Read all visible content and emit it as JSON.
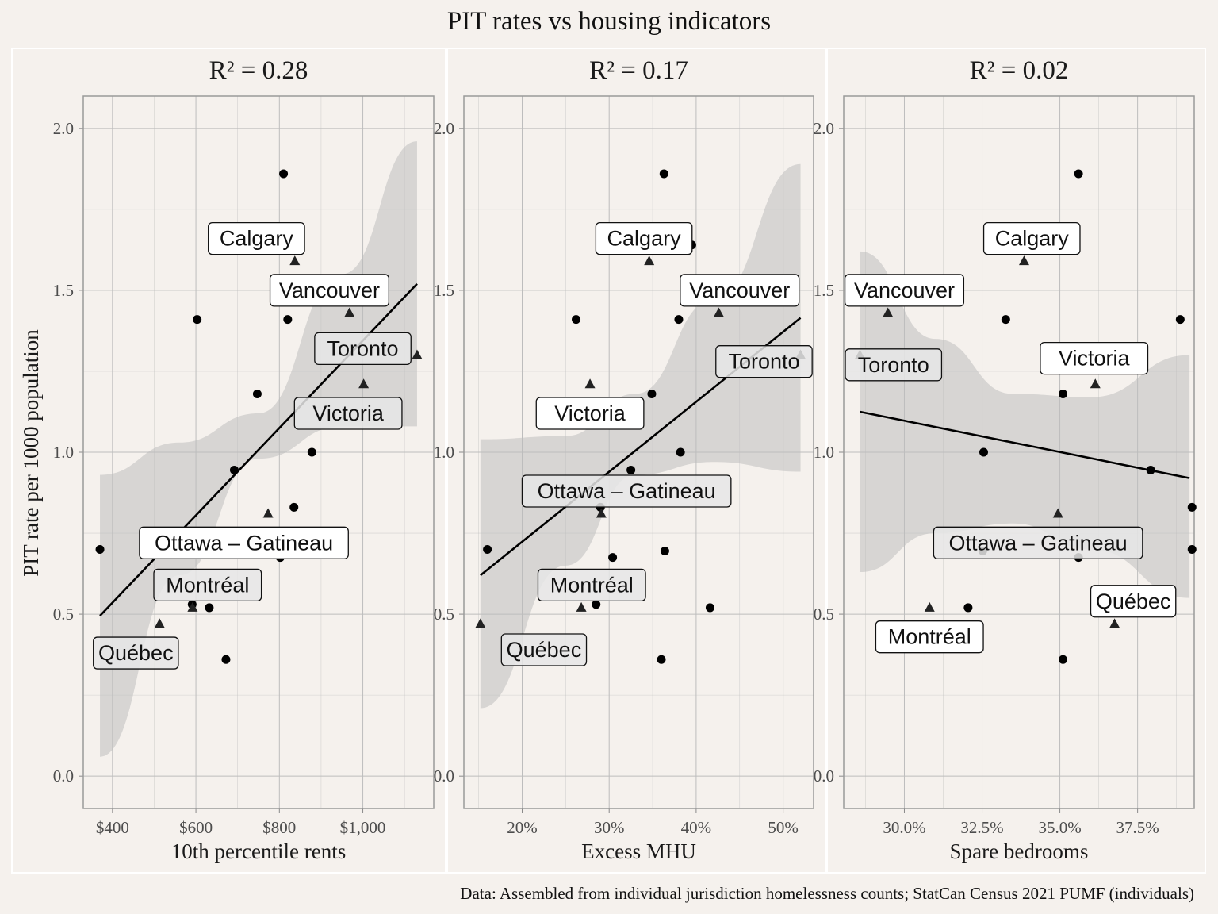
{
  "title": "PIT rates vs housing indicators",
  "caption": "Data: Assembled from individual jurisdiction homelessness counts; StatCan Census 2021 PUMF (individuals)",
  "y_axis_label": "PIT rate per 1000 population",
  "colors": {
    "background": "#F5F1ED",
    "panel_border": "#9a9a9a",
    "gridline": "#bdbdbd",
    "ribbon": "#bdbdbd",
    "points": "#000000",
    "label_fill": "#ffffff",
    "label_fill_shaded": "#e6e6e6"
  },
  "chart_data": [
    {
      "type": "scatter",
      "strip": "R² = 0.28",
      "xlabel": "10th percentile rents",
      "ylabel": "PIT rate per 1000 population",
      "xlim": [
        330,
        1170
      ],
      "ylim": [
        -0.1,
        2.1
      ],
      "x_ticks": [
        400,
        600,
        800,
        1000
      ],
      "x_tick_labels": [
        "$400",
        "$600",
        "$800",
        "$1,000"
      ],
      "y_ticks": [
        0,
        0.5,
        1.0,
        1.5,
        2.0
      ],
      "y_tick_labels": [
        "0.0",
        "0.5",
        "1.0",
        "1.5",
        "2.0"
      ],
      "fit_line": [
        [
          370,
          0.495
        ],
        [
          1130,
          1.52
        ]
      ],
      "band_lower": [
        [
          370,
          0.06
        ],
        [
          560,
          0.62
        ],
        [
          750,
          0.98
        ],
        [
          950,
          1.08
        ],
        [
          1130,
          1.08
        ]
      ],
      "band_upper": [
        [
          370,
          0.93
        ],
        [
          560,
          1.03
        ],
        [
          750,
          1.12
        ],
        [
          950,
          1.55
        ],
        [
          1130,
          1.96
        ]
      ],
      "circles": [
        [
          810,
          1.86
        ],
        [
          745,
          1.64
        ],
        [
          603,
          1.41
        ],
        [
          820,
          1.41
        ],
        [
          747,
          1.18
        ],
        [
          878,
          1.0
        ],
        [
          692,
          0.945
        ],
        [
          835,
          0.83
        ],
        [
          370,
          0.7
        ],
        [
          704,
          0.695
        ],
        [
          802,
          0.675
        ],
        [
          591,
          0.53
        ],
        [
          632,
          0.52
        ],
        [
          672,
          0.36
        ]
      ],
      "triangles": [
        [
          837,
          1.59
        ],
        [
          968,
          1.43
        ],
        [
          1130,
          1.3
        ],
        [
          1002,
          1.21
        ],
        [
          773,
          0.81
        ],
        [
          513,
          0.47
        ],
        [
          592,
          0.52
        ]
      ],
      "labels": [
        {
          "text": "Calgary",
          "x": 745,
          "y": 1.66,
          "shaded": false
        },
        {
          "text": "Vancouver",
          "x": 920,
          "y": 1.5,
          "shaded": false
        },
        {
          "text": "Toronto",
          "x": 1000,
          "y": 1.32,
          "shaded": true
        },
        {
          "text": "Victoria",
          "x": 965,
          "y": 1.12,
          "shaded": true
        },
        {
          "text": "Ottawa – Gatineau",
          "x": 715,
          "y": 0.72,
          "shaded": false
        },
        {
          "text": "Montréal",
          "x": 628,
          "y": 0.59,
          "shaded": true
        },
        {
          "text": "Québec",
          "x": 456,
          "y": 0.38,
          "shaded": true
        }
      ]
    },
    {
      "type": "scatter",
      "strip": "R² = 0.17",
      "xlabel": "Excess MHU",
      "ylabel": "PIT rate per 1000 population",
      "xlim": [
        0.133,
        0.535
      ],
      "ylim": [
        -0.1,
        2.1
      ],
      "x_ticks": [
        0.2,
        0.3,
        0.4,
        0.5
      ],
      "x_tick_labels": [
        "20%",
        "30%",
        "40%",
        "50%"
      ],
      "y_ticks": [
        0,
        0.5,
        1.0,
        1.5,
        2.0
      ],
      "y_tick_labels": [
        "0.0",
        "0.5",
        "1.0",
        "1.5",
        "2.0"
      ],
      "fit_line": [
        [
          0.152,
          0.62
        ],
        [
          0.52,
          1.415
        ]
      ],
      "band_lower": [
        [
          0.152,
          0.21
        ],
        [
          0.25,
          0.65
        ],
        [
          0.33,
          0.93
        ],
        [
          0.42,
          0.97
        ],
        [
          0.52,
          0.94
        ]
      ],
      "band_upper": [
        [
          0.152,
          1.04
        ],
        [
          0.25,
          1.05
        ],
        [
          0.33,
          1.18
        ],
        [
          0.42,
          1.47
        ],
        [
          0.52,
          1.89
        ]
      ],
      "circles": [
        [
          0.363,
          1.86
        ],
        [
          0.395,
          1.64
        ],
        [
          0.262,
          1.41
        ],
        [
          0.38,
          1.41
        ],
        [
          0.349,
          1.18
        ],
        [
          0.382,
          1.0
        ],
        [
          0.325,
          0.945
        ],
        [
          0.29,
          0.83
        ],
        [
          0.16,
          0.7
        ],
        [
          0.364,
          0.695
        ],
        [
          0.304,
          0.675
        ],
        [
          0.285,
          0.53
        ],
        [
          0.416,
          0.52
        ],
        [
          0.36,
          0.36
        ]
      ],
      "triangles": [
        [
          0.346,
          1.59
        ],
        [
          0.426,
          1.43
        ],
        [
          0.52,
          1.3
        ],
        [
          0.278,
          1.21
        ],
        [
          0.291,
          0.81
        ],
        [
          0.152,
          0.47
        ],
        [
          0.268,
          0.52
        ]
      ],
      "labels": [
        {
          "text": "Calgary",
          "x": 0.34,
          "y": 1.66,
          "shaded": false
        },
        {
          "text": "Vancouver",
          "x": 0.45,
          "y": 1.5,
          "shaded": false
        },
        {
          "text": "Toronto",
          "x": 0.478,
          "y": 1.28,
          "shaded": true
        },
        {
          "text": "Victoria",
          "x": 0.278,
          "y": 1.12,
          "shaded": false
        },
        {
          "text": "Ottawa – Gatineau",
          "x": 0.32,
          "y": 0.88,
          "shaded": true
        },
        {
          "text": "Montréal",
          "x": 0.28,
          "y": 0.59,
          "shaded": true
        },
        {
          "text": "Québec",
          "x": 0.225,
          "y": 0.39,
          "shaded": true
        }
      ]
    },
    {
      "type": "scatter",
      "strip": "R² = 0.02",
      "xlabel": "Spare bedrooms",
      "ylabel": "PIT rate per 1000 population",
      "xlim": [
        0.2805,
        0.3932
      ],
      "ylim": [
        -0.1,
        2.1
      ],
      "x_ticks": [
        0.3,
        0.325,
        0.35,
        0.375
      ],
      "x_tick_labels": [
        "30.0%",
        "32.5%",
        "35.0%",
        "37.5%"
      ],
      "y_ticks": [
        0,
        0.5,
        1.0,
        1.5,
        2.0
      ],
      "y_tick_labels": [
        "0.0",
        "0.5",
        "1.0",
        "1.5",
        "2.0"
      ],
      "fit_line": [
        [
          0.2857,
          1.125
        ],
        [
          0.3917,
          0.92
        ]
      ],
      "band_lower": [
        [
          0.2857,
          0.63
        ],
        [
          0.31,
          0.75
        ],
        [
          0.335,
          0.78
        ],
        [
          0.36,
          0.7
        ],
        [
          0.3917,
          0.55
        ]
      ],
      "band_upper": [
        [
          0.2857,
          1.62
        ],
        [
          0.31,
          1.35
        ],
        [
          0.335,
          1.18
        ],
        [
          0.36,
          1.17
        ],
        [
          0.3917,
          1.3
        ]
      ],
      "circles": [
        [
          0.356,
          1.86
        ],
        [
          0.3487,
          1.64
        ],
        [
          0.3326,
          1.41
        ],
        [
          0.3887,
          1.41
        ],
        [
          0.351,
          1.18
        ],
        [
          0.3255,
          1.0
        ],
        [
          0.3792,
          0.945
        ],
        [
          0.3925,
          0.83
        ],
        [
          0.3925,
          0.7
        ],
        [
          0.3252,
          0.695
        ],
        [
          0.356,
          0.675
        ],
        [
          0.3665,
          0.53
        ],
        [
          0.3205,
          0.52
        ],
        [
          0.351,
          0.36
        ]
      ],
      "triangles": [
        [
          0.3385,
          1.59
        ],
        [
          0.2947,
          1.43
        ],
        [
          0.2857,
          1.3
        ],
        [
          0.3614,
          1.21
        ],
        [
          0.3494,
          0.81
        ],
        [
          0.3676,
          0.47
        ],
        [
          0.3081,
          0.52
        ]
      ],
      "labels": [
        {
          "text": "Calgary",
          "x": 0.341,
          "y": 1.66,
          "shaded": false
        },
        {
          "text": "Vancouver",
          "x": 0.3,
          "y": 1.5,
          "shaded": false
        },
        {
          "text": "Toronto",
          "x": 0.2965,
          "y": 1.27,
          "shaded": true
        },
        {
          "text": "Victoria",
          "x": 0.361,
          "y": 1.29,
          "shaded": false
        },
        {
          "text": "Ottawa – Gatineau",
          "x": 0.343,
          "y": 0.72,
          "shaded": true
        },
        {
          "text": "Montréal",
          "x": 0.3081,
          "y": 0.43,
          "shaded": false
        },
        {
          "text": "Québec",
          "x": 0.3736,
          "y": 0.54,
          "shaded": false
        }
      ]
    }
  ]
}
